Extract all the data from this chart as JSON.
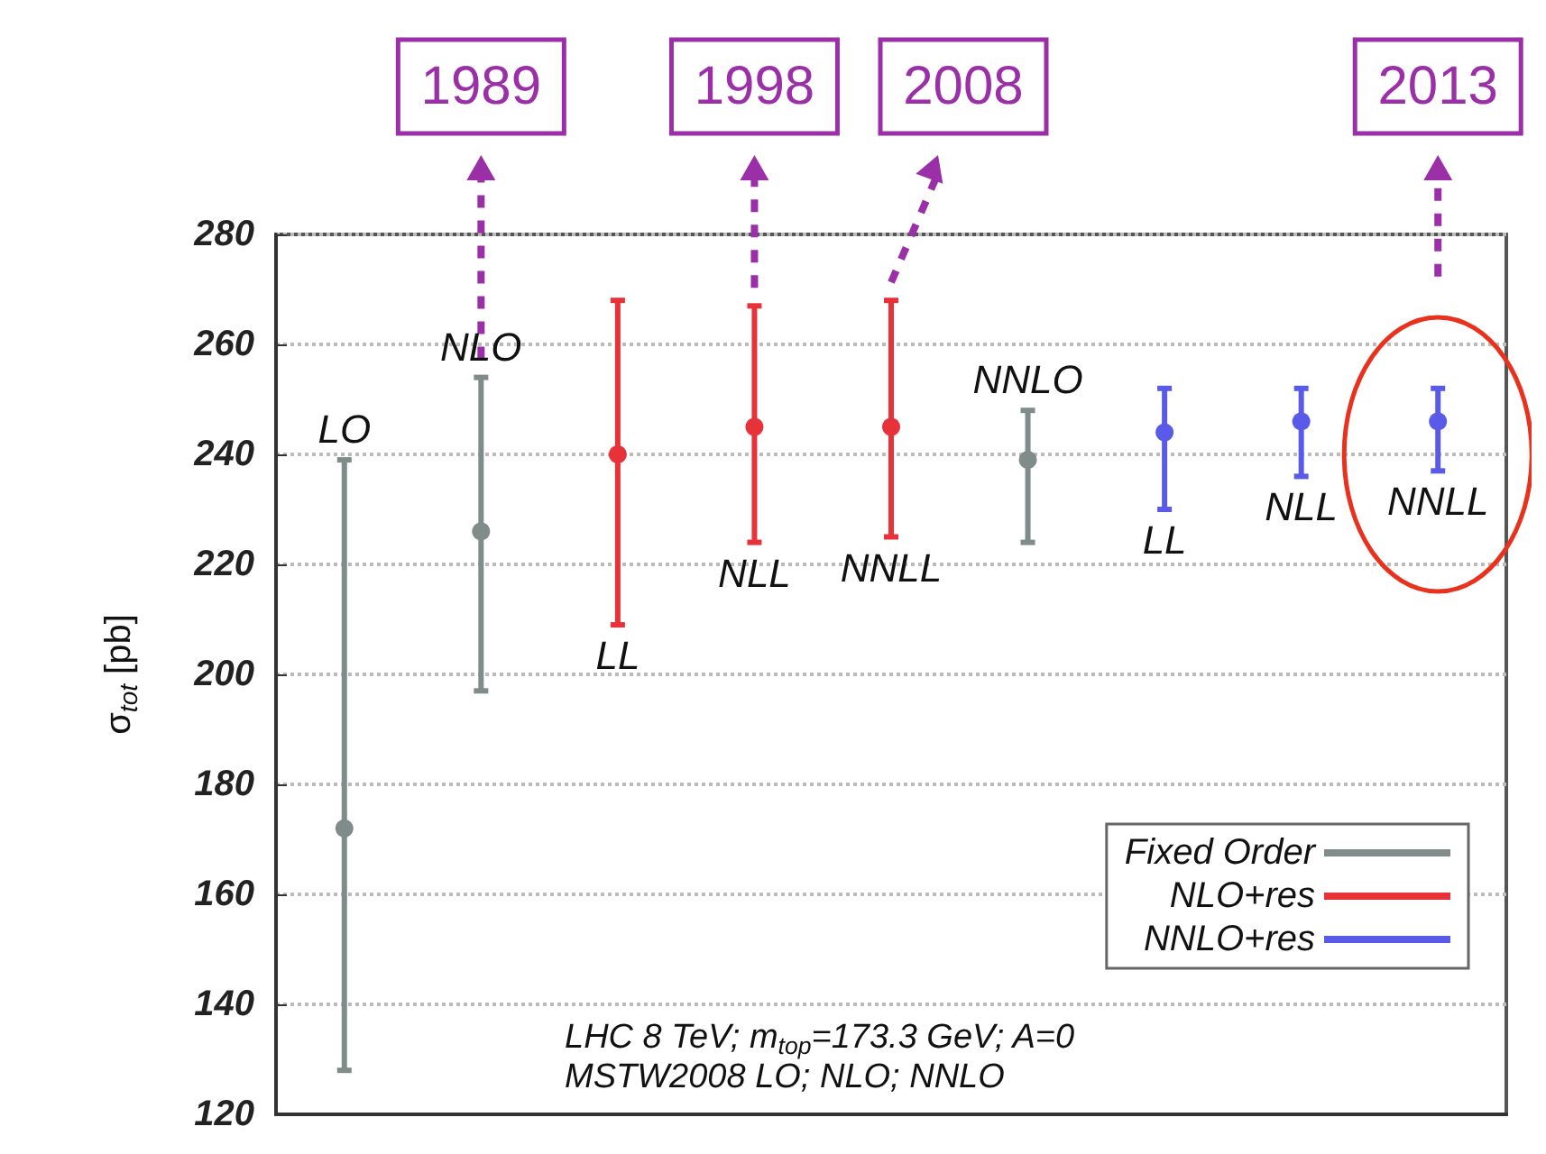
{
  "chart_data": {
    "type": "scatter",
    "ylabel": "σ$_{tot}$ [pb]",
    "categories": [
      "LO",
      "NLO",
      "LL",
      "NLL",
      "NNLL",
      "NNLO",
      "LL",
      "NLL",
      "NNLL"
    ],
    "series": [
      {
        "name": "Fixed Order",
        "color": "#7f8c8a",
        "values": [
          172,
          226,
          null,
          null,
          null,
          239,
          null,
          null,
          null
        ],
        "errors": [
          [
            128,
            239
          ],
          [
            197,
            254
          ],
          null,
          null,
          null,
          [
            224,
            248
          ],
          null,
          null,
          null
        ]
      },
      {
        "name": "NLO+res",
        "color": "#e8323a",
        "values": [
          null,
          null,
          240,
          245,
          245,
          null,
          null,
          null,
          null
        ],
        "errors": [
          null,
          null,
          [
            209,
            268
          ],
          [
            224,
            267
          ],
          [
            225,
            268
          ],
          null,
          null,
          null,
          null
        ]
      },
      {
        "name": "NNLO+res",
        "color": "#5a5ae8",
        "values": [
          null,
          null,
          null,
          null,
          null,
          null,
          244,
          246,
          246
        ],
        "errors": [
          null,
          null,
          null,
          null,
          null,
          null,
          [
            230,
            252
          ],
          [
            236,
            252
          ],
          [
            237,
            252
          ]
        ]
      }
    ],
    "ylim": [
      120,
      280
    ],
    "yticks": [
      120,
      140,
      160,
      180,
      200,
      220,
      240,
      260,
      280
    ],
    "grid": "y",
    "legend": "bottom right",
    "marker": "circle",
    "tick_labels": "y",
    "annotations": [
      "1989",
      "1998",
      "2008",
      "2013",
      "LHC 8 TeV; m$_{top}$=173.3 GeV; A=0",
      "MSTW2008 LO; NLO; NNLO"
    ]
  }
}
